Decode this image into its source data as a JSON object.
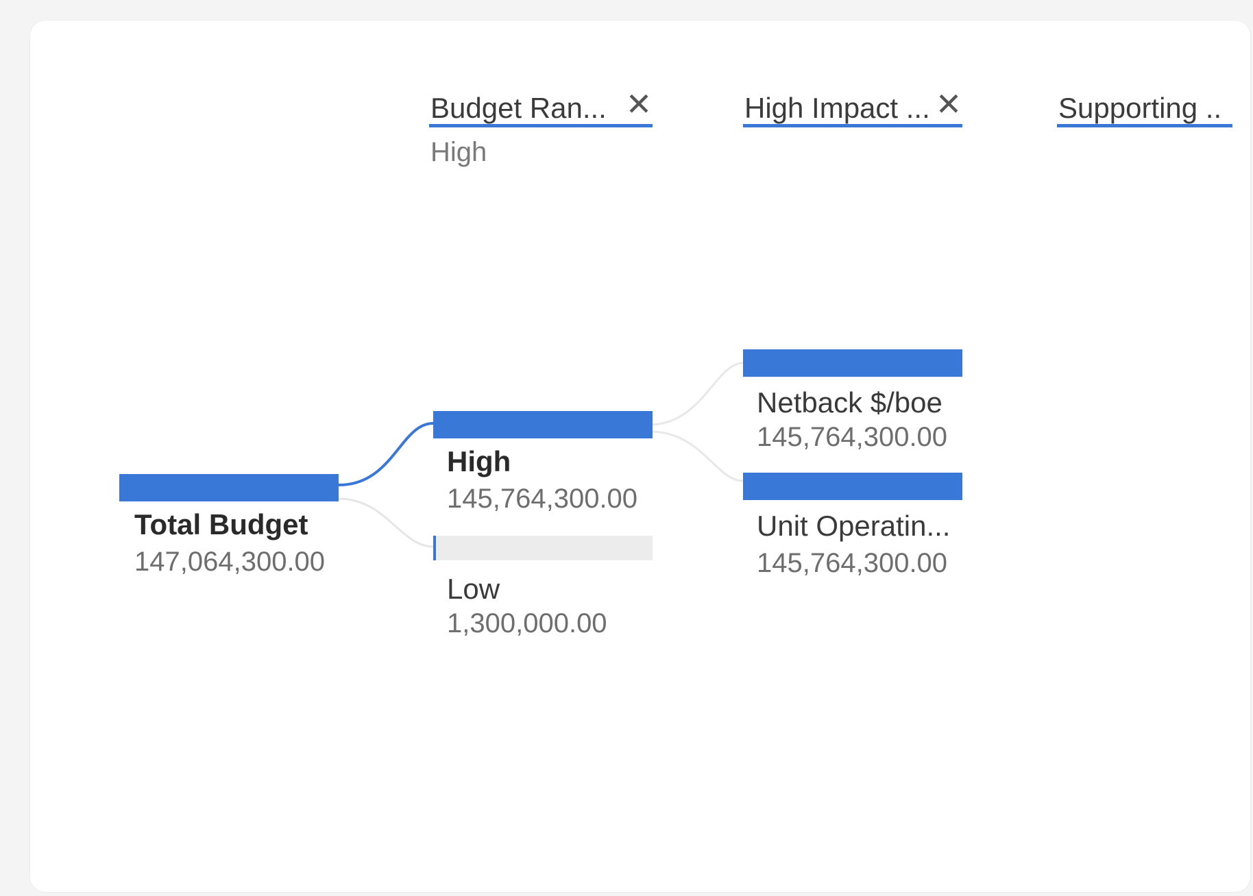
{
  "columns": [
    {
      "header": "Budget Ran...",
      "subtitle": "High",
      "has_close": true
    },
    {
      "header": "High Impact ...",
      "subtitle": "",
      "has_close": true
    },
    {
      "header": "Supporting ..",
      "subtitle": "",
      "has_close": false
    }
  ],
  "close_glyph": "✕",
  "root": {
    "label": "Total Budget",
    "value": "147,064,300.00",
    "share": 1.0
  },
  "level1": [
    {
      "label": "High",
      "value": "145,764,300.00",
      "share": 0.991,
      "selected": true
    },
    {
      "label": "Low",
      "value": "1,300,000.00",
      "share": 0.009,
      "selected": false
    }
  ],
  "level2": [
    {
      "label": "Netback $/boe",
      "value": "145,764,300.00",
      "share": 1.0
    },
    {
      "label": "Unit Operatin...",
      "value": "145,764,300.00",
      "share": 1.0
    }
  ],
  "accent_color": "#3a78d8",
  "icons": {
    "close": "close-icon"
  }
}
